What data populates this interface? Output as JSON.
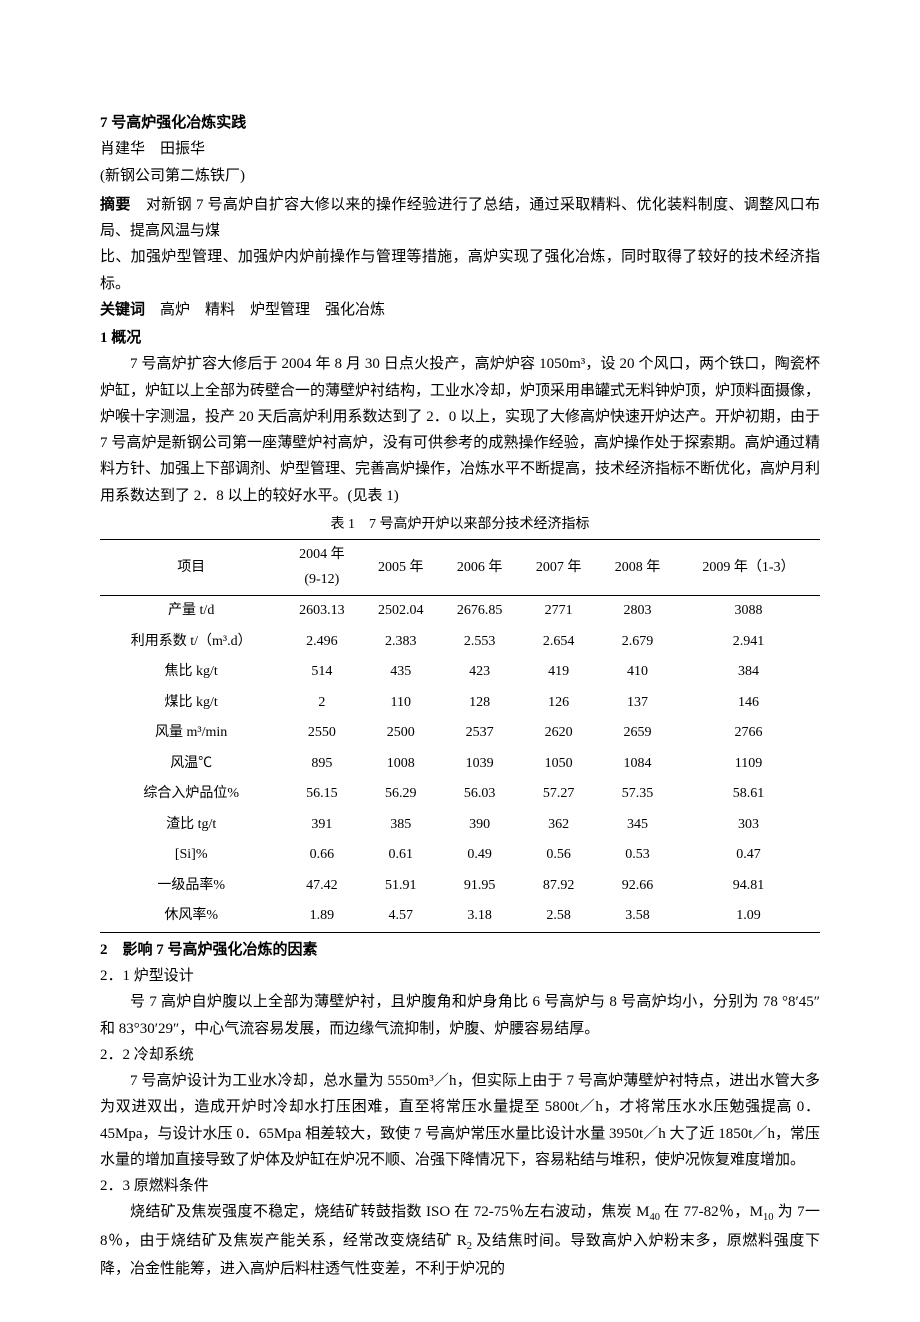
{
  "title": "7 号高炉强化冶炼实践",
  "authors": "肖建华　田振华",
  "affiliation": "(新钢公司第二炼铁厂)",
  "abstract_label": "摘要",
  "abstract_text": "　对新钢 7 号高炉自扩容大修以来的操作经验进行了总结，通过采取精料、优化装料制度、调整风口布局、提高风温与煤",
  "abstract_text2": "比、加强炉型管理、加强炉内炉前操作与管理等措施，高炉实现了强化冶炼，同时取得了较好的技术经济指标。",
  "kw_label": "关键词",
  "kw_text": "　高炉　精料　炉型管理　强化冶炼",
  "sec1_title": "1 概况",
  "sec1_p1": "7 号高炉扩容大修后于 2004 年 8 月 30 日点火投产，高炉炉容 1050m³，设 20 个风口，两个铁口，陶瓷杯炉缸，炉缸以上全部为砖壁合一的薄壁炉衬结构，工业水冷却，炉顶采用串罐式无料钟炉顶，炉顶料面摄像，炉喉十字测温，投产 20 天后高炉利用系数达到了 2．0 以上，实现了大修高炉快速开炉达产。开炉初期，由于 7 号高炉是新钢公司第一座薄壁炉衬高炉，没有可供参考的成熟操作经验，高炉操作处于探索期。高炉通过精料方针、加强上下部调剂、炉型管理、完善高炉操作，冶炼水平不断提高，技术经济指标不断优化，高炉月利用系数达到了 2．8 以上的较好水平。(见表 1)",
  "table": {
    "caption": "表 1　7 号高炉开炉以来部分技术经济指标",
    "header_item": "项目",
    "headers": [
      "2004 年\n(9-12)",
      "2005 年",
      "2006 年",
      "2007 年",
      "2008 年",
      "2009 年（1-3）"
    ],
    "rows": [
      {
        "label": "产量 t/d",
        "vals": [
          "2603.13",
          "2502.04",
          "2676.85",
          "2771",
          "2803",
          "3088"
        ]
      },
      {
        "label": "利用系数 t/（m³.d）",
        "vals": [
          "2.496",
          "2.383",
          "2.553",
          "2.654",
          "2.679",
          "2.941"
        ]
      },
      {
        "label": "焦比 kg/t",
        "vals": [
          "514",
          "435",
          "423",
          "419",
          "410",
          "384"
        ]
      },
      {
        "label": "煤比 kg/t",
        "vals": [
          "2",
          "110",
          "128",
          "126",
          "137",
          "146"
        ]
      },
      {
        "label": "风量 m³/min",
        "vals": [
          "2550",
          "2500",
          "2537",
          "2620",
          "2659",
          "2766"
        ]
      },
      {
        "label": "风温℃",
        "vals": [
          "895",
          "1008",
          "1039",
          "1050",
          "1084",
          "1109"
        ]
      },
      {
        "label": "综合入炉品位%",
        "vals": [
          "56.15",
          "56.29",
          "56.03",
          "57.27",
          "57.35",
          "58.61"
        ]
      },
      {
        "label": "渣比 tg/t",
        "vals": [
          "391",
          "385",
          "390",
          "362",
          "345",
          "303"
        ]
      },
      {
        "label": "[Si]%",
        "vals": [
          "0.66",
          "0.61",
          "0.49",
          "0.56",
          "0.53",
          "0.47"
        ]
      },
      {
        "label": "一级品率%",
        "vals": [
          "47.42",
          "51.91",
          "91.95",
          "87.92",
          "92.66",
          "94.81"
        ]
      },
      {
        "label": "休风率%",
        "vals": [
          "1.89",
          "4.57",
          "3.18",
          "2.58",
          "3.58",
          "1.09"
        ]
      }
    ]
  },
  "sec2_title": "2　影响 7 号高炉强化冶炼的因素",
  "sec2_1_title": "2．1 炉型设计",
  "sec2_1_p": "号 7 高炉自炉腹以上全部为薄壁炉衬，且炉腹角和炉身角比 6 号高炉与 8 号高炉均小，分别为 78 °8′45″和 83°30′29″，中心气流容易发展，而边缘气流抑制，炉腹、炉腰容易结厚。",
  "sec2_2_title": "2．2 冷却系统",
  "sec2_2_p": "7 号高炉设计为工业水冷却，总水量为 5550m³／h，但实际上由于 7 号高炉薄壁炉衬特点，进出水管大多为双进双出，造成开炉时冷却水打压困难，直至将常压水量提至 5800t／h，才将常压水水压勉强提高 0．45Mpa，与设计水压 0．65Mpa 相差较大，致使 7 号高炉常压水量比设计水量 3950t／h 大了近 1850t／h，常压水量的增加直接导致了炉体及炉缸在炉况不顺、冶强下降情况下，容易粘结与堆积，使炉况恢复难度增加。",
  "sec2_3_title": "2．3 原燃料条件",
  "sec2_3_p_a": "烧结矿及焦炭强度不稳定，烧结矿转鼓指数 ISO 在 72-75％左右波动，焦炭 M",
  "sec2_3_p_b": " 在 77-82％，M",
  "sec2_3_p_c": " 为 7一8％，由于烧结矿及焦炭产能关系，经常改变烧结矿 R",
  "sec2_3_p_d": " 及结焦时间。导致高炉入炉粉末多，原燃料强度下降，冶金性能筹，进入高炉后料柱透气性变差，不利于炉况的",
  "sub40": "40",
  "sub10": "10",
  "sub2": "2",
  "colors": {
    "text": "#000000",
    "bg": "#ffffff",
    "rule": "#000000"
  }
}
